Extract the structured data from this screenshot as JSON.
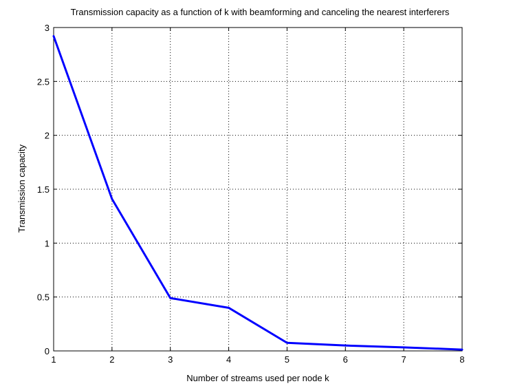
{
  "chart_data": {
    "type": "line",
    "title": "Transmission capacity as a function of k with beamforming and canceling the nearest interferers",
    "xlabel": "Number of streams used per node k",
    "ylabel": "Transmission capacity",
    "xlim": [
      1,
      8
    ],
    "ylim": [
      0,
      3
    ],
    "xticks": [
      1,
      2,
      3,
      4,
      5,
      6,
      7,
      8
    ],
    "yticks": [
      0,
      0.5,
      1,
      1.5,
      2,
      2.5,
      3
    ],
    "xtick_labels": [
      "1",
      "2",
      "3",
      "4",
      "5",
      "6",
      "7",
      "8"
    ],
    "ytick_labels": [
      "0",
      "0.5",
      "1",
      "1.5",
      "2",
      "2.5",
      "3"
    ],
    "grid": true,
    "series": [
      {
        "color": "#0000ff",
        "x": [
          1,
          2,
          3,
          4,
          5,
          6,
          7,
          8
        ],
        "y": [
          2.92,
          1.41,
          0.49,
          0.4,
          0.075,
          0.05,
          0.033,
          0.012
        ]
      }
    ]
  }
}
